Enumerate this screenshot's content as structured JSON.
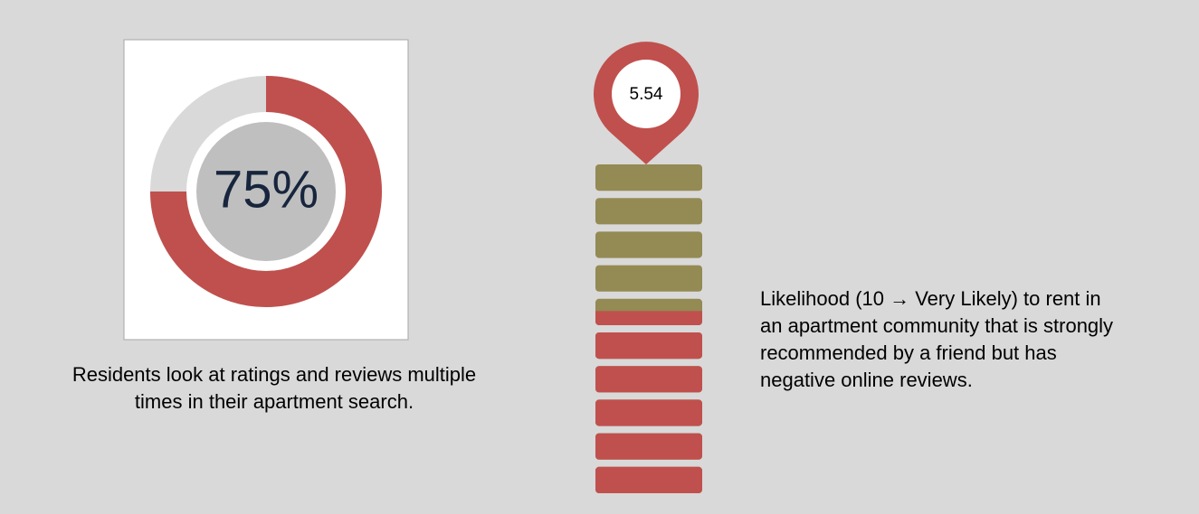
{
  "chart_data": [
    {
      "type": "donut",
      "values": [
        75
      ],
      "value_labels": [
        "75%"
      ],
      "color": "#c0504d",
      "caption": "Residents look at ratings and reviews multiple times in their apartment search."
    },
    {
      "type": "gauge",
      "values": [
        5.54
      ],
      "value_labels": [
        "5.54"
      ],
      "ylim": [
        0,
        10
      ],
      "color": "#c0504d",
      "empty_color": "#948a54",
      "caption": "Likelihood (10 → Very Likely) to rent in an apartment community that is strongly recommended by a friend but has negative online reviews."
    }
  ]
}
